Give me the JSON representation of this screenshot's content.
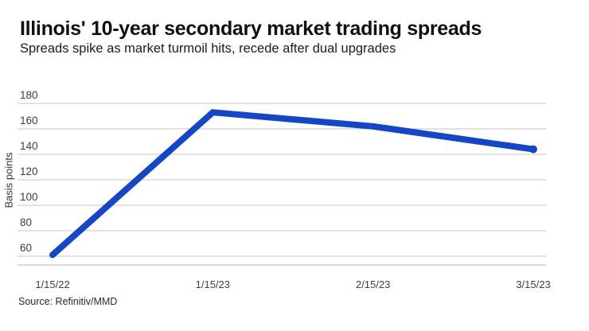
{
  "header": {
    "title": "Illinois' 10-year secondary market trading spreads",
    "subtitle": "Spreads spike as market turmoil hits, recede after dual upgrades"
  },
  "source_note": "Source: Refinitiv/MMD",
  "colors": {
    "line": "#1547c4",
    "grid": "#c4c4c4",
    "axis_line": "#b4b4b4",
    "tick_text": "#3f3f3f"
  },
  "chart_data": {
    "type": "line",
    "x": [
      "1/15/22",
      "1/15/23",
      "2/15/23",
      "3/15/23"
    ],
    "series": [
      {
        "name": "Illinois 10-year secondary market trading spread",
        "values": [
          61,
          173,
          162,
          144
        ]
      }
    ],
    "title": "Illinois' 10-year secondary market trading spreads",
    "subtitle": "Spreads spike as market turmoil hits, recede after dual upgrades",
    "xlabel": "",
    "ylabel": "Basis points",
    "yticks": [
      180,
      160,
      140,
      120,
      100,
      80,
      60
    ],
    "ylim": [
      60,
      180
    ],
    "grid": true,
    "legend": false,
    "line_end_marker": true
  }
}
